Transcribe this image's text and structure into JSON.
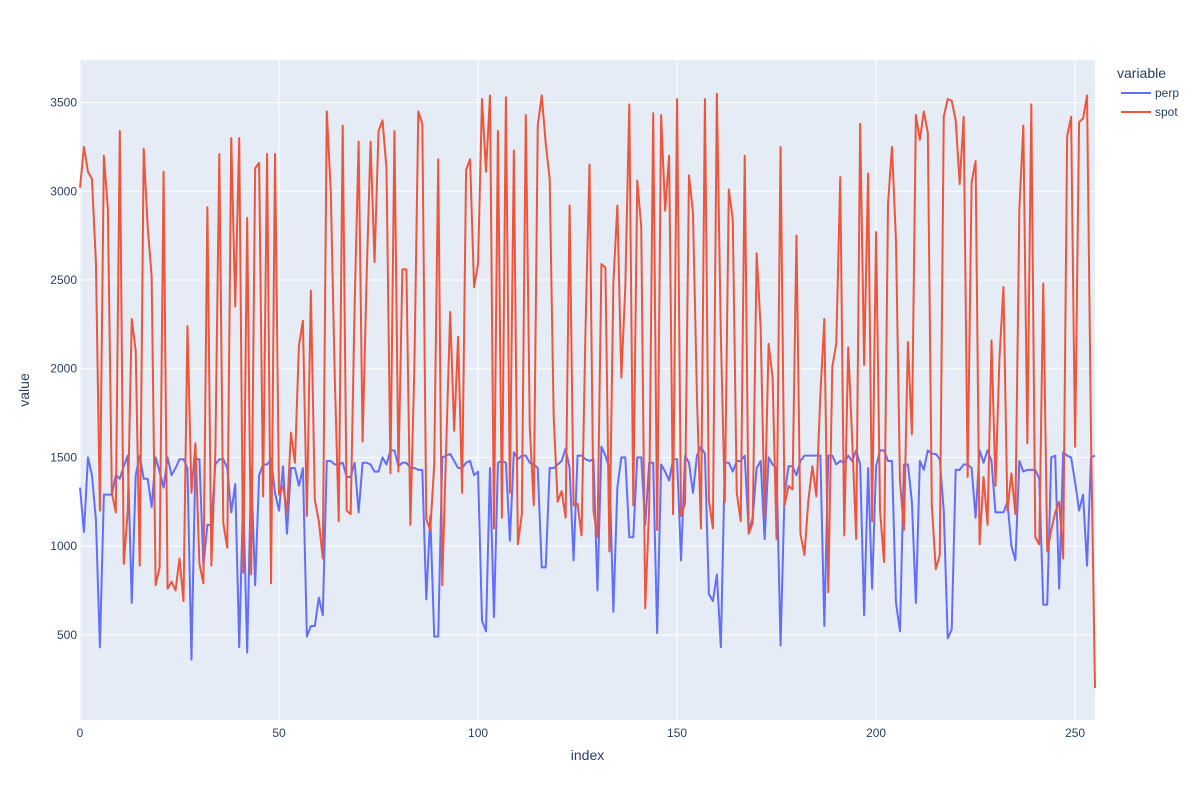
{
  "chart_data": {
    "type": "line",
    "xlabel": "index",
    "ylabel": "value",
    "legend_title": "variable",
    "legend_position": "top-right",
    "grid": true,
    "xlim": [
      0,
      255
    ],
    "ylim": [
      20,
      3740
    ],
    "x_ticks": [
      0,
      50,
      100,
      150,
      200,
      250
    ],
    "y_ticks": [
      500,
      1000,
      1500,
      2000,
      2500,
      3000,
      3500
    ],
    "colors": {
      "plot_background": "#e5ecf6",
      "grid": "#ffffff",
      "text": "#2a3f5f"
    },
    "x_start": 0,
    "x_step": 1,
    "series": [
      {
        "name": "perp",
        "color": "#636efa",
        "values": [
          1330,
          1080,
          1500,
          1400,
          1150,
          430,
          1290,
          1290,
          1290,
          1400,
          1380,
          1450,
          1510,
          680,
          1400,
          1510,
          1380,
          1380,
          1220,
          1500,
          1420,
          1330,
          1500,
          1400,
          1440,
          1490,
          1490,
          1440,
          360,
          1490,
          1490,
          890,
          1120,
          1120,
          1460,
          1490,
          1490,
          1440,
          1190,
          1350,
          430,
          1300,
          400,
          1430,
          780,
          1400,
          1460,
          1460,
          1490,
          1300,
          1200,
          1450,
          1070,
          1440,
          1440,
          1340,
          1440,
          490,
          550,
          550,
          710,
          610,
          1480,
          1480,
          1460,
          1460,
          1470,
          1390,
          1390,
          1470,
          1190,
          1470,
          1470,
          1460,
          1420,
          1420,
          1500,
          1460,
          1540,
          1540,
          1450,
          1470,
          1470,
          1440,
          1440,
          1430,
          1430,
          700,
          1170,
          490,
          490,
          1500,
          1510,
          1520,
          1480,
          1440,
          1440,
          1470,
          1480,
          1400,
          1420,
          580,
          520,
          1440,
          600,
          1470,
          1480,
          1470,
          1030,
          1530,
          1490,
          1510,
          1510,
          1470,
          1460,
          1440,
          880,
          880,
          1440,
          1440,
          1460,
          1480,
          1550,
          1440,
          920,
          1510,
          1510,
          1490,
          1480,
          1490,
          750,
          1560,
          1510,
          1440,
          630,
          1330,
          1500,
          1500,
          1050,
          1050,
          1500,
          1500,
          1120,
          1470,
          1470,
          510,
          1460,
          1420,
          1370,
          1490,
          1490,
          920,
          1510,
          1470,
          1300,
          1510,
          1560,
          1520,
          730,
          690,
          840,
          430,
          1470,
          1470,
          1420,
          1480,
          1480,
          1510,
          1080,
          1160,
          1440,
          1480,
          1040,
          1500,
          1460,
          1440,
          440,
          1290,
          1450,
          1450,
          1400,
          1480,
          1510,
          1510,
          1510,
          1510,
          1510,
          550,
          1510,
          1510,
          1460,
          1480,
          1470,
          1510,
          1480,
          1540,
          1460,
          610,
          1440,
          760,
          1450,
          1540,
          1540,
          1480,
          1480,
          680,
          520,
          1460,
          1460,
          1250,
          680,
          1480,
          1430,
          1540,
          1520,
          1520,
          1490,
          1200,
          480,
          530,
          1430,
          1430,
          1460,
          1460,
          1440,
          1160,
          1540,
          1470,
          1540,
          1480,
          1190,
          1190,
          1190,
          1250,
          1000,
          920,
          1480,
          1420,
          1430,
          1430,
          1430,
          1380,
          670,
          670,
          1500,
          1510,
          760,
          1530,
          1510,
          1500,
          1360,
          1200,
          1290,
          890,
          1500,
          1510
        ]
      },
      {
        "name": "spot",
        "color": "#ef553b",
        "values": [
          3020,
          3250,
          3110,
          3070,
          2600,
          1200,
          3200,
          2900,
          1300,
          1190,
          3340,
          900,
          1200,
          2280,
          2100,
          890,
          3240,
          2800,
          2520,
          780,
          880,
          3110,
          760,
          800,
          750,
          930,
          690,
          2240,
          1300,
          1580,
          900,
          790,
          2910,
          890,
          1520,
          3210,
          1130,
          990,
          3300,
          2350,
          3300,
          850,
          2850,
          840,
          3130,
          3160,
          1280,
          3210,
          790,
          3210,
          1290,
          1340,
          1190,
          1640,
          1470,
          2130,
          2270,
          1170,
          2440,
          1260,
          1140,
          930,
          3450,
          3000,
          1960,
          1140,
          3370,
          1200,
          1180,
          2360,
          3280,
          1590,
          2510,
          3280,
          2600,
          3340,
          3400,
          3130,
          1410,
          3340,
          1420,
          2560,
          2560,
          1120,
          2000,
          3450,
          3380,
          1150,
          1090,
          1460,
          3180,
          780,
          1560,
          2320,
          1650,
          2180,
          1300,
          3120,
          3180,
          2460,
          2590,
          3520,
          3110,
          3540,
          1100,
          3340,
          1160,
          3530,
          1300,
          3230,
          1010,
          1180,
          3430,
          1670,
          1230,
          3370,
          3540,
          3270,
          3070,
          1730,
          1250,
          1310,
          1160,
          2920,
          1230,
          1240,
          1060,
          2220,
          3150,
          1200,
          1050,
          2590,
          2570,
          970,
          2480,
          2920,
          1950,
          2460,
          3490,
          1230,
          3060,
          2800,
          650,
          1220,
          3440,
          1090,
          3430,
          2890,
          3200,
          1180,
          3520,
          1170,
          1240,
          3090,
          2880,
          1840,
          1100,
          3520,
          1260,
          1100,
          3550,
          2190,
          1250,
          3010,
          2840,
          1300,
          1140,
          3200,
          1070,
          1130,
          2650,
          2230,
          1170,
          2140,
          1950,
          1040,
          3250,
          1230,
          1340,
          1320,
          2750,
          1070,
          950,
          1260,
          1450,
          1280,
          1850,
          2280,
          740,
          2010,
          2140,
          3080,
          1060,
          2120,
          1600,
          1040,
          3380,
          2020,
          3100,
          1140,
          2770,
          1200,
          910,
          2930,
          3250,
          2720,
          1370,
          1090,
          2150,
          1630,
          3430,
          3290,
          3450,
          3330,
          1230,
          870,
          950,
          3420,
          3520,
          3510,
          3400,
          3040,
          3420,
          1390,
          3050,
          3170,
          1010,
          1390,
          1120,
          2160,
          1340,
          2060,
          2460,
          1200,
          1410,
          1180,
          2900,
          3370,
          1580,
          3490,
          1050,
          1010,
          2480,
          970,
          1090,
          1190,
          1250,
          930,
          3310,
          3420,
          1560,
          3390,
          3410,
          3540,
          1620,
          200
        ]
      }
    ]
  }
}
